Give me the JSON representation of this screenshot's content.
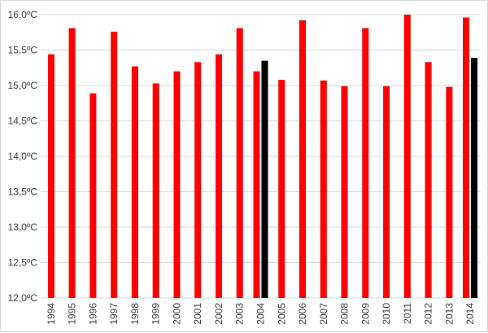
{
  "chart_data": {
    "type": "bar",
    "title": "",
    "xlabel": "",
    "ylabel": "",
    "ylim": [
      12.0,
      16.0
    ],
    "y_ticks": [
      "12,0ºC",
      "12,5ºC",
      "13,0ºC",
      "13,5ºC",
      "14,0ºC",
      "14,5ºC",
      "15,0ºC",
      "15,5ºC",
      "16,0ºC"
    ],
    "grid": true,
    "legend": "none",
    "categories": [
      "1994",
      "1995",
      "1996",
      "1997",
      "1998",
      "1999",
      "2000",
      "2001",
      "2002",
      "2003",
      "2004",
      "2005",
      "2006",
      "2007",
      "2008",
      "2009",
      "2010",
      "2011",
      "2012",
      "2013",
      "2014"
    ],
    "series": [
      {
        "color": "#ff0000",
        "values": [
          15.44,
          15.81,
          14.89,
          15.76,
          15.27,
          15.03,
          15.2,
          15.33,
          15.44,
          15.81,
          15.2,
          15.08,
          15.92,
          15.07,
          14.99,
          15.81,
          14.99,
          16.0,
          15.33,
          14.98,
          15.96
        ]
      },
      {
        "color": "#000000",
        "values": [
          null,
          null,
          null,
          null,
          null,
          null,
          null,
          null,
          null,
          null,
          15.35,
          null,
          null,
          null,
          null,
          null,
          null,
          null,
          null,
          null,
          15.39
        ]
      }
    ]
  }
}
